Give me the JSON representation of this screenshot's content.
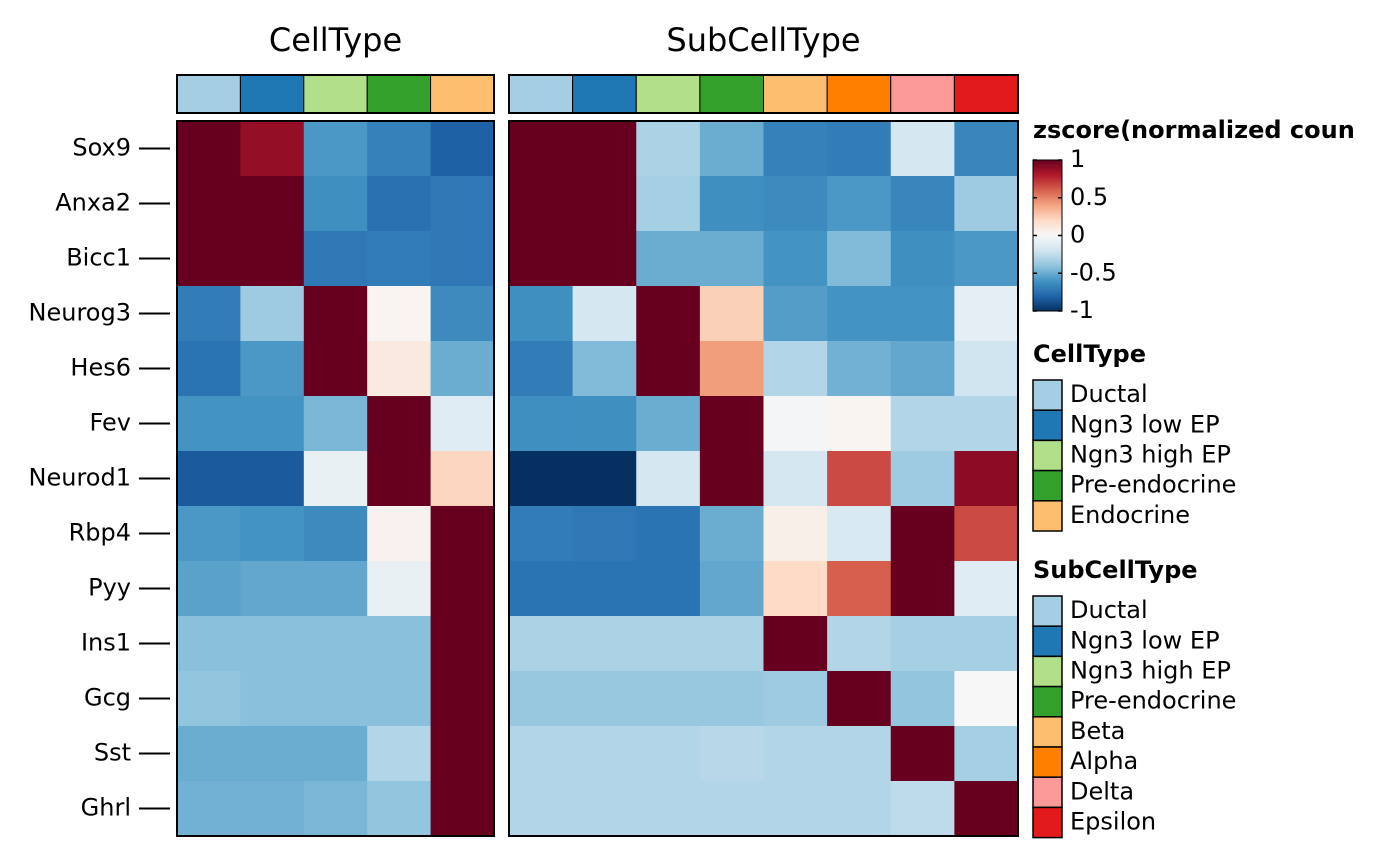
{
  "chart_data": {
    "type": "heatmap",
    "value_label": "zscore(normalized coun",
    "scale_range": [
      -1,
      1
    ],
    "color_stops": [
      "#053061",
      "#2166ac",
      "#4393c3",
      "#92c5de",
      "#d1e5f0",
      "#f7f7f7",
      "#fddbc7",
      "#f4a582",
      "#d6604d",
      "#b2182b",
      "#67001f"
    ],
    "colorbar_ticks": [
      {
        "value": 1,
        "label": "1"
      },
      {
        "value": 0.5,
        "label": "0.5"
      },
      {
        "value": 0,
        "label": "0"
      },
      {
        "value": -0.5,
        "label": "-0.5"
      },
      {
        "value": -1,
        "label": "-1"
      }
    ],
    "genes": [
      "Sox9",
      "Anxa2",
      "Bicc1",
      "Neurog3",
      "Hes6",
      "Fev",
      "Neurod1",
      "Rbp4",
      "Pyy",
      "Ins1",
      "Gcg",
      "Sst",
      "Ghrl"
    ],
    "panels": [
      {
        "title": "CellType",
        "groups": [
          "Ductal",
          "Ngn3 low EP",
          "Ngn3 high EP",
          "Pre-endocrine",
          "Endocrine"
        ],
        "group_colors": [
          "#a6cee3",
          "#1f78b4",
          "#b2df8a",
          "#33a02c",
          "#fdbf6f"
        ],
        "values": [
          [
            1.0,
            0.88,
            -0.58,
            -0.68,
            -0.82
          ],
          [
            1.0,
            1.0,
            -0.62,
            -0.75,
            -0.72
          ],
          [
            1.0,
            1.0,
            -0.72,
            -0.7,
            -0.72
          ],
          [
            -0.7,
            -0.36,
            1.0,
            0.02,
            -0.64
          ],
          [
            -0.74,
            -0.58,
            1.0,
            0.1,
            -0.5
          ],
          [
            -0.6,
            -0.6,
            -0.46,
            1.0,
            -0.12
          ],
          [
            -0.84,
            -0.84,
            -0.08,
            1.0,
            0.22
          ],
          [
            -0.58,
            -0.6,
            -0.64,
            0.04,
            1.0
          ],
          [
            -0.54,
            -0.52,
            -0.52,
            -0.08,
            1.0
          ],
          [
            -0.42,
            -0.42,
            -0.42,
            -0.42,
            1.0
          ],
          [
            -0.4,
            -0.42,
            -0.42,
            -0.42,
            1.0
          ],
          [
            -0.5,
            -0.5,
            -0.5,
            -0.3,
            1.0
          ],
          [
            -0.48,
            -0.48,
            -0.46,
            -0.4,
            1.0
          ]
        ]
      },
      {
        "title": "SubCellType",
        "groups": [
          "Ductal",
          "Ngn3 low EP",
          "Ngn3 high EP",
          "Pre-endocrine",
          "Beta",
          "Alpha",
          "Delta",
          "Epsilon"
        ],
        "group_colors": [
          "#a6cee3",
          "#1f78b4",
          "#b2df8a",
          "#33a02c",
          "#fdbf6f",
          "#ff7f00",
          "#fb9a99",
          "#e31a1c"
        ],
        "values": [
          [
            1.0,
            1.0,
            -0.32,
            -0.5,
            -0.68,
            -0.7,
            -0.18,
            -0.66
          ],
          [
            1.0,
            1.0,
            -0.34,
            -0.62,
            -0.64,
            -0.58,
            -0.66,
            -0.36
          ],
          [
            1.0,
            1.0,
            -0.5,
            -0.5,
            -0.6,
            -0.44,
            -0.62,
            -0.58
          ],
          [
            -0.62,
            -0.18,
            1.0,
            0.24,
            -0.56,
            -0.6,
            -0.6,
            -0.1
          ],
          [
            -0.7,
            -0.44,
            1.0,
            0.42,
            -0.3,
            -0.48,
            -0.52,
            -0.2
          ],
          [
            -0.62,
            -0.62,
            -0.5,
            1.0,
            -0.02,
            0.02,
            -0.3,
            -0.3
          ],
          [
            -1.0,
            -1.0,
            -0.18,
            1.0,
            -0.18,
            0.66,
            -0.36,
            0.9
          ],
          [
            -0.7,
            -0.72,
            -0.74,
            -0.5,
            0.06,
            -0.16,
            1.0,
            0.66
          ],
          [
            -0.74,
            -0.74,
            -0.74,
            -0.52,
            0.2,
            0.6,
            1.0,
            -0.12
          ],
          [
            -0.32,
            -0.32,
            -0.32,
            -0.32,
            1.0,
            -0.3,
            -0.34,
            -0.34
          ],
          [
            -0.38,
            -0.38,
            -0.38,
            -0.38,
            -0.36,
            1.0,
            -0.4,
            0.0
          ],
          [
            -0.3,
            -0.3,
            -0.3,
            -0.28,
            -0.3,
            -0.3,
            1.0,
            -0.34
          ],
          [
            -0.3,
            -0.3,
            -0.3,
            -0.3,
            -0.3,
            -0.3,
            -0.26,
            1.0
          ]
        ]
      }
    ],
    "legends": [
      {
        "title": "CellType",
        "labels": [
          "Ductal",
          "Ngn3 low EP",
          "Ngn3 high EP",
          "Pre-endocrine",
          "Endocrine"
        ],
        "colors": [
          "#a6cee3",
          "#1f78b4",
          "#b2df8a",
          "#33a02c",
          "#fdbf6f"
        ]
      },
      {
        "title": "SubCellType",
        "labels": [
          "Ductal",
          "Ngn3 low EP",
          "Ngn3 high EP",
          "Pre-endocrine",
          "Beta",
          "Alpha",
          "Delta",
          "Epsilon"
        ],
        "colors": [
          "#a6cee3",
          "#1f78b4",
          "#b2df8a",
          "#33a02c",
          "#fdbf6f",
          "#ff7f00",
          "#fb9a99",
          "#e31a1c"
        ]
      }
    ]
  }
}
